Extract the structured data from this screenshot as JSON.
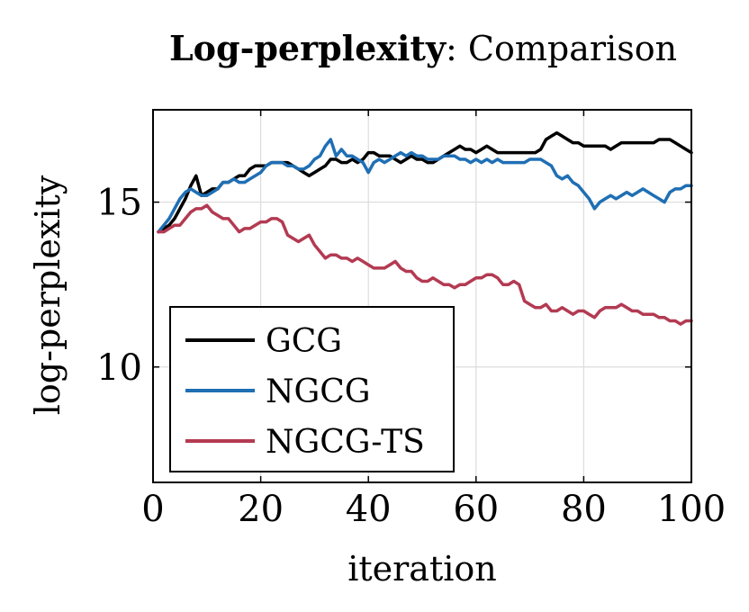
{
  "chart_data": {
    "type": "line",
    "title_bold": "Log-perplexity",
    "title_rest": ": Comparison",
    "xlabel": "iteration",
    "ylabel": "log-perplexity",
    "xlim": [
      0,
      100
    ],
    "ylim": [
      6.5,
      17.8
    ],
    "xticks": [
      0,
      20,
      40,
      60,
      80,
      100
    ],
    "xtick_labels": [
      "0",
      "20",
      "40",
      "60",
      "80",
      "100"
    ],
    "yticks": [
      10,
      15
    ],
    "ytick_labels": [
      "10",
      "15"
    ],
    "grid": true,
    "legend_position": "bottom-left",
    "x": [
      1,
      2,
      3,
      4,
      5,
      6,
      7,
      8,
      9,
      10,
      11,
      12,
      13,
      14,
      15,
      16,
      17,
      18,
      19,
      20,
      21,
      22,
      23,
      24,
      25,
      26,
      27,
      28,
      29,
      30,
      31,
      32,
      33,
      34,
      35,
      36,
      37,
      38,
      39,
      40,
      41,
      42,
      43,
      44,
      45,
      46,
      47,
      48,
      49,
      50,
      51,
      52,
      53,
      54,
      55,
      56,
      57,
      58,
      59,
      60,
      61,
      62,
      63,
      64,
      65,
      66,
      67,
      68,
      69,
      70,
      71,
      72,
      73,
      74,
      75,
      76,
      77,
      78,
      79,
      80,
      81,
      82,
      83,
      84,
      85,
      86,
      87,
      88,
      89,
      90,
      91,
      92,
      93,
      94,
      95,
      96,
      97,
      98,
      99,
      100
    ],
    "series": [
      {
        "name": "GCG",
        "color": "#000000",
        "values": [
          14.1,
          14.2,
          14.3,
          14.5,
          14.8,
          15.1,
          15.5,
          15.8,
          15.2,
          15.3,
          15.4,
          15.4,
          15.6,
          15.6,
          15.7,
          15.8,
          15.8,
          16.0,
          16.1,
          16.1,
          16.1,
          16.2,
          16.2,
          16.2,
          16.2,
          16.1,
          16.0,
          15.9,
          15.8,
          15.9,
          16.0,
          16.1,
          16.3,
          16.3,
          16.2,
          16.2,
          16.3,
          16.2,
          16.3,
          16.5,
          16.5,
          16.4,
          16.4,
          16.4,
          16.3,
          16.2,
          16.3,
          16.4,
          16.3,
          16.3,
          16.2,
          16.2,
          16.3,
          16.4,
          16.5,
          16.6,
          16.7,
          16.6,
          16.6,
          16.5,
          16.6,
          16.7,
          16.6,
          16.5,
          16.5,
          16.5,
          16.5,
          16.5,
          16.5,
          16.5,
          16.5,
          16.6,
          16.9,
          17.0,
          17.1,
          17.0,
          16.9,
          16.8,
          16.8,
          16.7,
          16.7,
          16.7,
          16.7,
          16.7,
          16.6,
          16.7,
          16.8,
          16.8,
          16.8,
          16.8,
          16.8,
          16.8,
          16.8,
          16.9,
          16.9,
          16.9,
          16.8,
          16.7,
          16.6,
          16.5
        ]
      },
      {
        "name": "NGCG",
        "color": "#1f6fb4",
        "values": [
          14.1,
          14.3,
          14.5,
          14.8,
          15.1,
          15.3,
          15.4,
          15.3,
          15.2,
          15.2,
          15.3,
          15.4,
          15.6,
          15.6,
          15.7,
          15.6,
          15.6,
          15.7,
          15.8,
          15.9,
          16.1,
          16.2,
          16.2,
          16.2,
          16.1,
          16.1,
          16.0,
          16.0,
          16.1,
          16.3,
          16.4,
          16.7,
          16.9,
          16.4,
          16.6,
          16.4,
          16.4,
          16.3,
          16.2,
          15.9,
          16.2,
          16.3,
          16.2,
          16.3,
          16.4,
          16.5,
          16.4,
          16.5,
          16.4,
          16.4,
          16.3,
          16.3,
          16.3,
          16.4,
          16.4,
          16.4,
          16.3,
          16.3,
          16.2,
          16.3,
          16.2,
          16.3,
          16.2,
          16.3,
          16.2,
          16.2,
          16.2,
          16.2,
          16.2,
          16.3,
          16.3,
          16.3,
          16.2,
          16.1,
          15.8,
          15.7,
          15.8,
          15.6,
          15.5,
          15.3,
          15.1,
          14.8,
          15.0,
          15.1,
          15.2,
          15.1,
          15.2,
          15.3,
          15.2,
          15.3,
          15.4,
          15.3,
          15.2,
          15.1,
          15.0,
          15.3,
          15.4,
          15.4,
          15.5,
          15.5
        ]
      },
      {
        "name": "NGCG-TS",
        "color": "#b33a52",
        "values": [
          14.1,
          14.1,
          14.2,
          14.3,
          14.3,
          14.5,
          14.7,
          14.8,
          14.8,
          14.9,
          14.7,
          14.6,
          14.5,
          14.5,
          14.3,
          14.1,
          14.2,
          14.2,
          14.3,
          14.4,
          14.4,
          14.5,
          14.5,
          14.4,
          14.0,
          13.9,
          13.8,
          13.9,
          14.0,
          13.7,
          13.5,
          13.3,
          13.4,
          13.4,
          13.3,
          13.3,
          13.2,
          13.3,
          13.2,
          13.1,
          13.0,
          13.0,
          13.0,
          13.1,
          13.2,
          13.0,
          12.9,
          12.9,
          12.7,
          12.6,
          12.6,
          12.7,
          12.6,
          12.5,
          12.5,
          12.4,
          12.5,
          12.5,
          12.6,
          12.7,
          12.7,
          12.8,
          12.8,
          12.7,
          12.5,
          12.5,
          12.6,
          12.5,
          12.0,
          11.9,
          11.8,
          11.8,
          11.9,
          11.7,
          11.7,
          11.8,
          11.7,
          11.6,
          11.7,
          11.7,
          11.6,
          11.5,
          11.7,
          11.8,
          11.8,
          11.8,
          11.9,
          11.8,
          11.7,
          11.7,
          11.6,
          11.6,
          11.6,
          11.5,
          11.5,
          11.4,
          11.4,
          11.3,
          11.4,
          11.4
        ]
      }
    ]
  }
}
